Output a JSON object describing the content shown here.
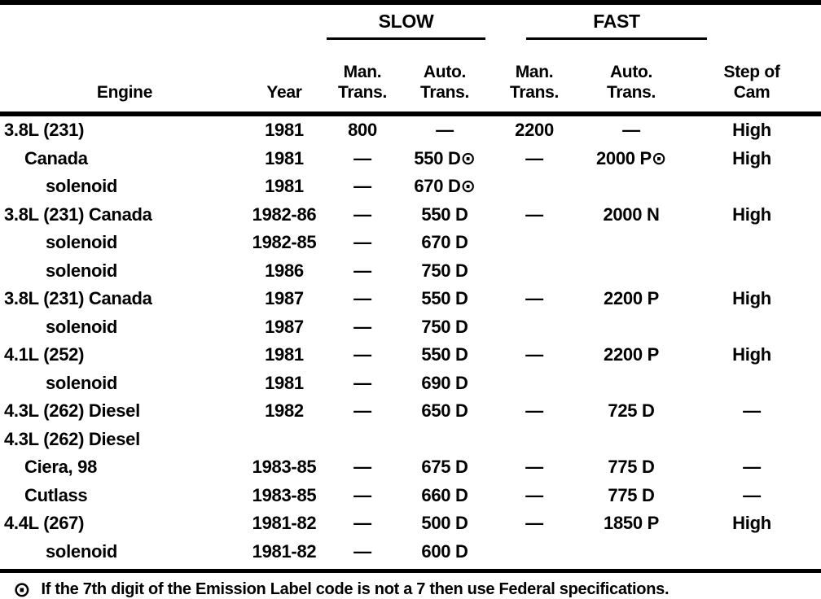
{
  "colors": {
    "ink": "#000000",
    "paper": "#ffffff"
  },
  "table": {
    "groups": {
      "slow": "SLOW",
      "fast": "FAST"
    },
    "columns": {
      "engine": "Engine",
      "year": "Year",
      "slow_man": {
        "l1": "Man.",
        "l2": "Trans."
      },
      "slow_auto": {
        "l1": "Auto.",
        "l2": "Trans."
      },
      "fast_man": {
        "l1": "Man.",
        "l2": "Trans."
      },
      "fast_auto": {
        "l1": "Auto.",
        "l2": "Trans."
      },
      "cam": {
        "l1": "Step of",
        "l2": "Cam"
      }
    },
    "rows": [
      {
        "engine": "3.8L (231)",
        "indent": 0,
        "year": "1981",
        "slow_man": "800",
        "slow_auto": "—",
        "fast_man": "2200",
        "fast_auto": "—",
        "cam": "High"
      },
      {
        "engine": "Canada",
        "indent": 1,
        "year": "1981",
        "slow_man": "—",
        "slow_auto": "550 D⊙",
        "fast_man": "—",
        "fast_auto": "2000 P⊙",
        "cam": "High"
      },
      {
        "engine": "solenoid",
        "indent": 2,
        "year": "1981",
        "slow_man": "—",
        "slow_auto": "670 D⊙",
        "fast_man": "",
        "fast_auto": "",
        "cam": ""
      },
      {
        "engine": "3.8L (231) Canada",
        "indent": 0,
        "year": "1982-86",
        "slow_man": "—",
        "slow_auto": "550 D",
        "fast_man": "—",
        "fast_auto": "2000 N",
        "cam": "High"
      },
      {
        "engine": "solenoid",
        "indent": 2,
        "year": "1982-85",
        "slow_man": "—",
        "slow_auto": "670 D",
        "fast_man": "",
        "fast_auto": "",
        "cam": ""
      },
      {
        "engine": "solenoid",
        "indent": 2,
        "year": "1986",
        "slow_man": "—",
        "slow_auto": "750 D",
        "fast_man": "",
        "fast_auto": "",
        "cam": ""
      },
      {
        "engine": "3.8L (231) Canada",
        "indent": 0,
        "year": "1987",
        "slow_man": "—",
        "slow_auto": "550 D",
        "fast_man": "—",
        "fast_auto": "2200 P",
        "cam": "High"
      },
      {
        "engine": "solenoid",
        "indent": 2,
        "year": "1987",
        "slow_man": "—",
        "slow_auto": "750 D",
        "fast_man": "",
        "fast_auto": "",
        "cam": ""
      },
      {
        "engine": "4.1L (252)",
        "indent": 0,
        "year": "1981",
        "slow_man": "—",
        "slow_auto": "550 D",
        "fast_man": "—",
        "fast_auto": "2200 P",
        "cam": "High"
      },
      {
        "engine": "solenoid",
        "indent": 2,
        "year": "1981",
        "slow_man": "—",
        "slow_auto": "690 D",
        "fast_man": "",
        "fast_auto": "",
        "cam": ""
      },
      {
        "engine": "4.3L (262) Diesel",
        "indent": 0,
        "year": "1982",
        "slow_man": "—",
        "slow_auto": "650 D",
        "fast_man": "—",
        "fast_auto": "725 D",
        "cam": "—"
      },
      {
        "engine": "4.3L (262) Diesel",
        "indent": 0,
        "year": "",
        "slow_man": "",
        "slow_auto": "",
        "fast_man": "",
        "fast_auto": "",
        "cam": ""
      },
      {
        "engine": "Ciera, 98",
        "indent": 1,
        "year": "1983-85",
        "slow_man": "—",
        "slow_auto": "675 D",
        "fast_man": "—",
        "fast_auto": "775 D",
        "cam": "—"
      },
      {
        "engine": "Cutlass",
        "indent": 1,
        "year": "1983-85",
        "slow_man": "—",
        "slow_auto": "660 D",
        "fast_man": "—",
        "fast_auto": "775 D",
        "cam": "—"
      },
      {
        "engine": "4.4L (267)",
        "indent": 0,
        "year": "1981-82",
        "slow_man": "—",
        "slow_auto": "500 D",
        "fast_man": "—",
        "fast_auto": "1850 P",
        "cam": "High"
      },
      {
        "engine": "solenoid",
        "indent": 2,
        "year": "1981-82",
        "slow_man": "—",
        "slow_auto": "600 D",
        "fast_man": "",
        "fast_auto": "",
        "cam": ""
      }
    ]
  },
  "footnote": {
    "symbol": "⊙",
    "text": "If the 7th digit of the Emission Label code is not a 7 then use Federal specifications."
  }
}
